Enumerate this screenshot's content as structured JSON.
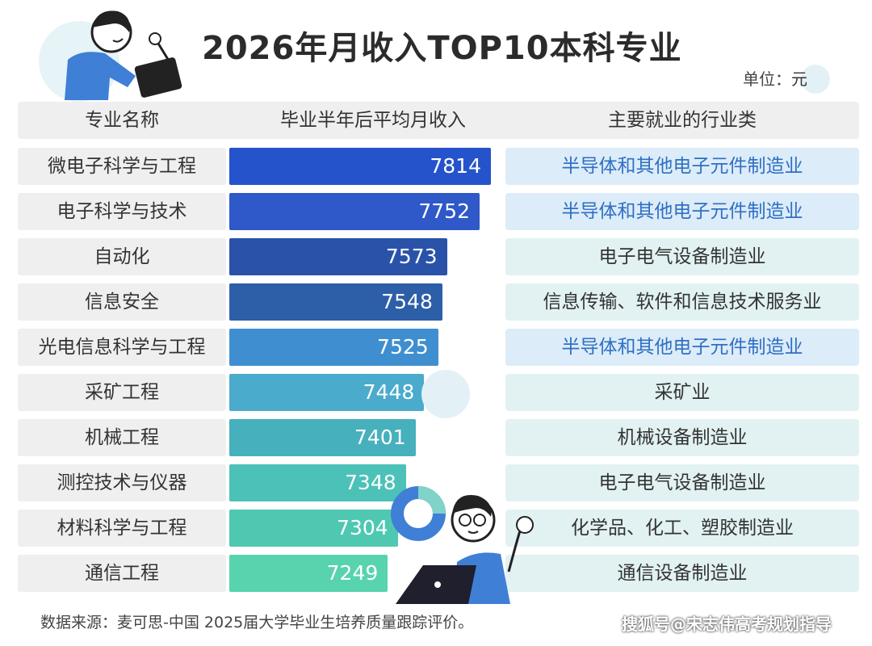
{
  "title": "2026年月收入TOP10本科专业",
  "unit": {
    "label": "单位：",
    "value": "元"
  },
  "headers": {
    "major": "专业名称",
    "income": "毕业半年后平均月收入",
    "industry": "主要就业的行业类"
  },
  "colors": {
    "highlight_text": "#2f6fc4",
    "industry_bg_highlight": "#dcecf8",
    "industry_bg_normal": "#e2f2f2",
    "bars": [
      "#2553cc",
      "#2f58c8",
      "#2a52a8",
      "#2d5ea8",
      "#3f8fd0",
      "#4aabcc",
      "#47b0bd",
      "#4cc1b8",
      "#4fc8b2",
      "#57d3ae"
    ]
  },
  "chart_data": {
    "type": "bar",
    "orientation": "horizontal",
    "title": "2026年月收入TOP10本科专业",
    "value_label": "毕业半年后平均月收入",
    "unit": "元",
    "categories": [
      "微电子科学与工程",
      "电子科学与技术",
      "自动化",
      "信息安全",
      "光电信息科学与工程",
      "采矿工程",
      "机械工程",
      "测控技术与仪器",
      "材料科学与工程",
      "通信工程"
    ],
    "values": [
      7814,
      7752,
      7573,
      7548,
      7525,
      7448,
      7401,
      7348,
      7304,
      7249
    ],
    "industries": [
      "半导体和其他电子元件制造业",
      "半导体和其他电子元件制造业",
      "电子电气设备制造业",
      "信息传输、软件和信息技术服务业",
      "半导体和其他电子元件制造业",
      "采矿业",
      "机械设备制造业",
      "电子电气设备制造业",
      "化学品、化工、塑胶制造业",
      "通信设备制造业"
    ],
    "industry_highlight": [
      true,
      true,
      false,
      false,
      true,
      false,
      false,
      false,
      false,
      false
    ]
  },
  "footer": "数据来源：麦可思-中国 2025届大学毕业生培养质量跟踪评价。",
  "watermark": "搜狐号@宋志伟高考规划指导"
}
